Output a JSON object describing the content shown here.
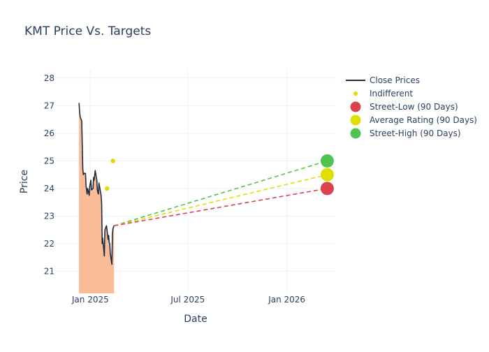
{
  "chart_data": {
    "type": "line",
    "title": "KMT Price Vs. Targets",
    "xlabel": "Date",
    "ylabel": "Price",
    "xlim": [
      "2024-10-29",
      "2026-04-01"
    ],
    "ylim": [
      20.2,
      28.3
    ],
    "x_ticks": [
      {
        "date": "2025-01-01",
        "label": "Jan 2025"
      },
      {
        "date": "2025-07-01",
        "label": "Jul 2025"
      },
      {
        "date": "2026-01-01",
        "label": "Jan 2026"
      }
    ],
    "y_ticks": [
      21,
      22,
      23,
      24,
      25,
      26,
      27,
      28
    ],
    "grid": true,
    "legend_position": "top-right",
    "colors": {
      "close": "#1f2d3d",
      "fill": "#f9bb98",
      "indifferent": "#e5d800",
      "street_low": "#d9434e",
      "average": "#e1df00",
      "street_high": "#4fc452",
      "grid": "#ebf0f8"
    },
    "series": [
      {
        "name": "Close Prices",
        "points": [
          [
            "2024-12-11",
            27.1
          ],
          [
            "2024-12-12",
            26.8
          ],
          [
            "2024-12-13",
            26.6
          ],
          [
            "2024-12-16",
            26.45
          ],
          [
            "2024-12-17",
            25.6
          ],
          [
            "2024-12-18",
            24.7
          ],
          [
            "2024-12-19",
            24.5
          ],
          [
            "2024-12-20",
            24.55
          ],
          [
            "2024-12-23",
            24.55
          ],
          [
            "2024-12-24",
            24.1
          ],
          [
            "2024-12-26",
            23.8
          ],
          [
            "2024-12-27",
            24.0
          ],
          [
            "2024-12-30",
            23.75
          ],
          [
            "2024-12-31",
            24.1
          ],
          [
            "2025-01-02",
            24.3
          ],
          [
            "2025-01-03",
            23.95
          ],
          [
            "2025-01-06",
            24.0
          ],
          [
            "2025-01-07",
            24.4
          ],
          [
            "2025-01-08",
            24.3
          ],
          [
            "2025-01-10",
            24.65
          ],
          [
            "2025-01-13",
            24.3
          ],
          [
            "2025-01-14",
            23.95
          ],
          [
            "2025-01-15",
            23.85
          ],
          [
            "2025-01-16",
            23.8
          ],
          [
            "2025-01-17",
            24.2
          ],
          [
            "2025-01-21",
            23.75
          ],
          [
            "2025-01-22",
            23.45
          ],
          [
            "2025-01-23",
            22.0
          ],
          [
            "2025-01-24",
            22.2
          ],
          [
            "2025-01-27",
            21.55
          ],
          [
            "2025-01-28",
            22.5
          ],
          [
            "2025-01-29",
            22.55
          ],
          [
            "2025-01-30",
            22.6
          ],
          [
            "2025-01-31",
            22.65
          ],
          [
            "2025-02-03",
            22.15
          ],
          [
            "2025-02-04",
            22.3
          ],
          [
            "2025-02-05",
            22.05
          ],
          [
            "2025-02-06",
            22.0
          ],
          [
            "2025-02-07",
            21.65
          ],
          [
            "2025-02-10",
            21.25
          ],
          [
            "2025-02-11",
            22.35
          ],
          [
            "2025-02-12",
            22.55
          ],
          [
            "2025-02-13",
            22.6
          ],
          [
            "2025-02-14",
            22.65
          ]
        ]
      },
      {
        "name": "Indifferent",
        "points": [
          [
            "2025-02-01",
            24.0
          ],
          [
            "2025-02-12",
            25.0
          ]
        ]
      },
      {
        "name": "Street-Low (90 Days)",
        "start": [
          "2025-02-14",
          22.65
        ],
        "target": [
          "2026-03-17",
          24.0
        ]
      },
      {
        "name": "Average Rating (90 Days)",
        "start": [
          "2025-02-14",
          22.65
        ],
        "target": [
          "2026-03-17",
          24.5
        ]
      },
      {
        "name": "Street-High (90 Days)",
        "start": [
          "2025-02-14",
          22.65
        ],
        "target": [
          "2026-03-17",
          25.0
        ]
      }
    ]
  }
}
